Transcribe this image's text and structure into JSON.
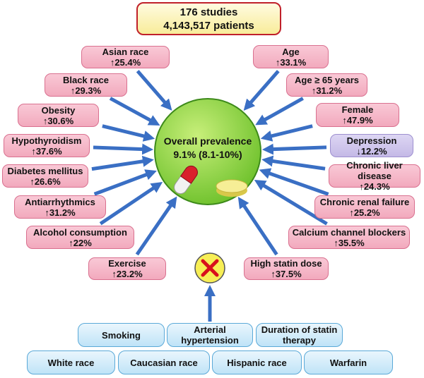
{
  "header": {
    "line1": "176 studies",
    "line2": "4,143,517 patients"
  },
  "center": {
    "line1": "Overall prevalence",
    "line2": "9.1% (8.1-10%)"
  },
  "left_factors": [
    {
      "label": "Asian race",
      "change": "↑25.4%"
    },
    {
      "label": "Black race",
      "change": "↑29.3%"
    },
    {
      "label": "Obesity",
      "change": "↑30.6%"
    },
    {
      "label": "Hypothyroidism",
      "change": "↑37.6%"
    },
    {
      "label": "Diabetes mellitus",
      "change": "↑26.6%"
    },
    {
      "label": "Antiarrhythmics",
      "change": "↑31.2%"
    },
    {
      "label": "Alcohol consumption",
      "change": "↑22%"
    },
    {
      "label": "Exercise",
      "change": "↑23.2%"
    }
  ],
  "right_factors": [
    {
      "label": "Age",
      "change": "↑33.1%"
    },
    {
      "label": "Age ≥ 65 years",
      "change": "↑31.2%"
    },
    {
      "label": "Female",
      "change": "↑47.9%"
    },
    {
      "label": "Depression",
      "change": "↓12.2%"
    },
    {
      "label": "Chronic liver disease",
      "change": "↑24.3%"
    },
    {
      "label": "Chronic renal failure",
      "change": "↑25.2%"
    },
    {
      "label": "Calcium channel blockers",
      "change": "↑35.5%"
    },
    {
      "label": "High statin dose",
      "change": "↑37.5%"
    }
  ],
  "non_factors": [
    "Smoking",
    "Arterial hypertension",
    "Duration of statin therapy",
    "White race",
    "Caucasian race",
    "Hispanic race",
    "Warfarin"
  ]
}
